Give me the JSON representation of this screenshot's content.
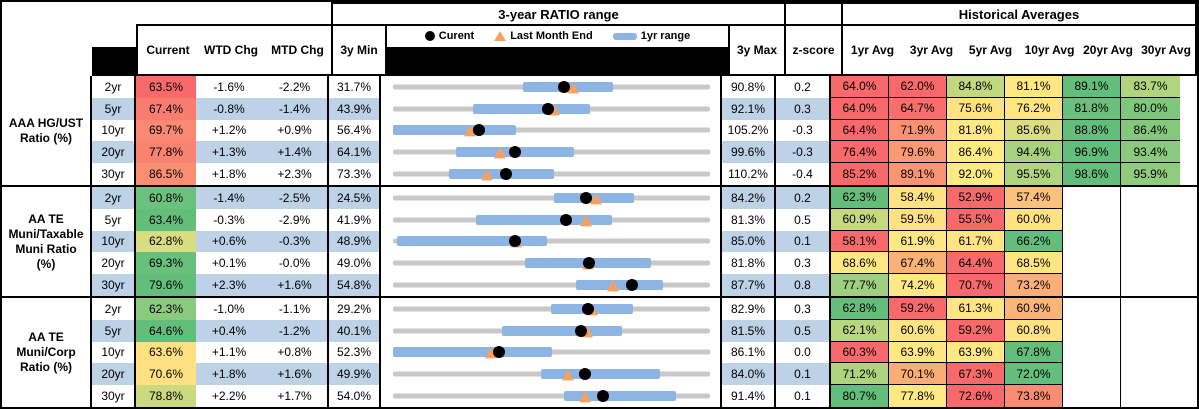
{
  "header": {
    "range_title": "3-year RATIO range",
    "averages_title": "Historical Averages",
    "legend": {
      "current": "Curent",
      "last_month_end": "Last Month End",
      "yr_range": "1yr range"
    },
    "cols": {
      "current": "Current",
      "wtd": "WTD Chg",
      "mtd": "MTD Chg",
      "min": "3y Min",
      "max": "3y Max",
      "z": "z-score"
    },
    "avg_cols": [
      "1yr Avg",
      "3yr Avg",
      "5yr Avg",
      "10yr Avg",
      "20yr Avg",
      "30yr Avg"
    ]
  },
  "colors": {
    "stripe": "#BDD2E6",
    "track": "#C8C8C8",
    "bar": "#8DB4E2",
    "dot": "#000000",
    "triangle": "#F9A05C"
  },
  "groups": [
    {
      "label": "AAA HG/UST Ratio (%)",
      "label_lines": [
        "AAA HG/UST",
        "Ratio (%)"
      ],
      "rows": [
        {
          "term": "2yr",
          "current": "63.5%",
          "current_color": "#F8696B",
          "wtd": "-1.6%",
          "mtd": "-2.2%",
          "min": "31.7%",
          "max": "90.8%",
          "z": "0.2",
          "avgs": [
            "64.0%",
            "62.0%",
            "84.8%",
            "81.1%",
            "89.1%",
            "83.7%"
          ],
          "avg_colors": [
            "#F8696B",
            "#F8696B",
            "#C1D881",
            "#FFE883",
            "#63BE7B",
            "#B2D47F"
          ]
        },
        {
          "term": "5yr",
          "current": "67.4%",
          "current_color": "#F87D70",
          "wtd": "-0.8%",
          "mtd": "-1.4%",
          "min": "43.9%",
          "max": "92.1%",
          "z": "0.3",
          "avgs": [
            "64.0%",
            "64.7%",
            "75.6%",
            "76.2%",
            "81.8%",
            "80.0%"
          ],
          "avg_colors": [
            "#F8696B",
            "#F86E6D",
            "#FFE383",
            "#FFE583",
            "#69C07C",
            "#7FC77D"
          ]
        },
        {
          "term": "10yr",
          "current": "69.7%",
          "current_color": "#F98973",
          "wtd": "+1.2%",
          "mtd": "+0.9%",
          "min": "56.4%",
          "max": "105.2%",
          "z": "-0.3",
          "avgs": [
            "64.4%",
            "71.9%",
            "81.8%",
            "85.6%",
            "88.8%",
            "86.4%"
          ],
          "avg_colors": [
            "#F8696B",
            "#F99172",
            "#FFE983",
            "#DADD82",
            "#63BE7B",
            "#85C87D"
          ]
        },
        {
          "term": "20yr",
          "current": "77.8%",
          "current_color": "#F88370",
          "wtd": "+1.3%",
          "mtd": "+1.4%",
          "min": "64.1%",
          "max": "99.6%",
          "z": "-0.3",
          "avgs": [
            "76.4%",
            "79.6%",
            "86.4%",
            "94.4%",
            "96.9%",
            "93.4%"
          ],
          "avg_colors": [
            "#F8696B",
            "#FA9A74",
            "#FFEB84",
            "#A8D27F",
            "#63BE7B",
            "#8BCA7E"
          ]
        },
        {
          "term": "30yr",
          "current": "86.5%",
          "current_color": "#F98E73",
          "wtd": "+1.8%",
          "mtd": "+2.3%",
          "min": "73.3%",
          "max": "110.2%",
          "z": "-0.4",
          "avgs": [
            "85.2%",
            "89.1%",
            "92.0%",
            "95.5%",
            "98.6%",
            "95.9%"
          ],
          "avg_colors": [
            "#F8696B",
            "#FA9573",
            "#FFEB84",
            "#B1D47F",
            "#63BE7B",
            "#90CB7E"
          ]
        }
      ]
    },
    {
      "label": "AA TE Muni/Taxable Muni Ratio (%)",
      "label_lines": [
        "AA TE",
        "Muni/Taxable",
        "Muni Ratio",
        "(%)"
      ],
      "rows": [
        {
          "term": "2yr",
          "current": "60.8%",
          "current_color": "#6CC17C",
          "wtd": "-1.4%",
          "mtd": "-2.5%",
          "min": "24.5%",
          "max": "84.2%",
          "z": "0.2",
          "avgs": [
            "62.3%",
            "58.4%",
            "52.9%",
            "57.4%",
            "",
            ""
          ],
          "avg_colors": [
            "#63BE7B",
            "#FFE283",
            "#F8696B",
            "#FCC17D",
            "",
            ""
          ]
        },
        {
          "term": "5yr",
          "current": "63.4%",
          "current_color": "#63BE7B",
          "wtd": "-0.3%",
          "mtd": "-2.9%",
          "min": "41.9%",
          "max": "81.3%",
          "z": "0.5",
          "avgs": [
            "60.9%",
            "59.5%",
            "55.5%",
            "60.0%",
            "",
            ""
          ],
          "avg_colors": [
            "#C6D980",
            "#FFE083",
            "#F8696B",
            "#FFE383",
            "",
            ""
          ]
        },
        {
          "term": "10yr",
          "current": "62.8%",
          "current_color": "#DADC82",
          "wtd": "+0.6%",
          "mtd": "-0.3%",
          "min": "48.9%",
          "max": "85.0%",
          "z": "0.1",
          "avgs": [
            "58.1%",
            "61.9%",
            "61.7%",
            "66.2%",
            "",
            ""
          ],
          "avg_colors": [
            "#F8696B",
            "#FFE884",
            "#FFE483",
            "#63BE7B",
            "",
            ""
          ]
        },
        {
          "term": "20yr",
          "current": "69.3%",
          "current_color": "#68C07C",
          "wtd": "+0.1%",
          "mtd": "-0.0%",
          "min": "49.0%",
          "max": "81.8%",
          "z": "0.3",
          "avgs": [
            "68.6%",
            "67.4%",
            "64.4%",
            "68.5%",
            "",
            ""
          ],
          "avg_colors": [
            "#FFE884",
            "#FBB277",
            "#F8696B",
            "#FEE683",
            "",
            ""
          ]
        },
        {
          "term": "30yr",
          "current": "79.6%",
          "current_color": "#63BE7B",
          "wtd": "+2.3%",
          "mtd": "+1.6%",
          "min": "54.8%",
          "max": "87.7%",
          "z": "0.8",
          "avgs": [
            "77.7%",
            "74.2%",
            "70.7%",
            "73.2%",
            "",
            ""
          ],
          "avg_colors": [
            "#9FD07F",
            "#FFE984",
            "#F8696B",
            "#FBAF76",
            "",
            ""
          ]
        }
      ]
    },
    {
      "label": "AA TE Muni/Corp Ratio (%)",
      "label_lines": [
        "AA TE",
        "Muni/Corp",
        "Ratio (%)"
      ],
      "rows": [
        {
          "term": "2yr",
          "current": "62.3%",
          "current_color": "#8ACA7E",
          "wtd": "-1.0%",
          "mtd": "-1.1%",
          "min": "29.2%",
          "max": "82.9%",
          "z": "0.3",
          "avgs": [
            "62.8%",
            "59.2%",
            "61.3%",
            "60.9%",
            "",
            ""
          ],
          "avg_colors": [
            "#63BE7B",
            "#F8696B",
            "#FFE583",
            "#FBB577",
            "",
            ""
          ]
        },
        {
          "term": "5yr",
          "current": "64.6%",
          "current_color": "#63BE7B",
          "wtd": "+0.4%",
          "mtd": "-1.2%",
          "min": "40.1%",
          "max": "81.5%",
          "z": "0.5",
          "avgs": [
            "62.1%",
            "60.6%",
            "59.2%",
            "60.8%",
            "",
            ""
          ],
          "avg_colors": [
            "#B9D680",
            "#FFE483",
            "#F8696B",
            "#FFE283",
            "",
            ""
          ]
        },
        {
          "term": "10yr",
          "current": "63.6%",
          "current_color": "#FFE183",
          "wtd": "+1.1%",
          "mtd": "+0.8%",
          "min": "52.3%",
          "max": "86.1%",
          "z": "0.0",
          "avgs": [
            "60.3%",
            "63.9%",
            "63.9%",
            "67.8%",
            "",
            ""
          ],
          "avg_colors": [
            "#F8696B",
            "#FFE884",
            "#FFE884",
            "#63BE7B",
            "",
            ""
          ]
        },
        {
          "term": "20yr",
          "current": "70.6%",
          "current_color": "#FFE083",
          "wtd": "+1.8%",
          "mtd": "+1.6%",
          "min": "49.9%",
          "max": "84.0%",
          "z": "0.1",
          "avgs": [
            "71.2%",
            "70.1%",
            "67.3%",
            "72.0%",
            "",
            ""
          ],
          "avg_colors": [
            "#AFD47F",
            "#FBAD76",
            "#F8696B",
            "#63BE7B",
            "",
            ""
          ]
        },
        {
          "term": "30yr",
          "current": "78.8%",
          "current_color": "#CCD980",
          "wtd": "+2.2%",
          "mtd": "+1.7%",
          "min": "54.0%",
          "max": "91.4%",
          "z": "0.1",
          "avgs": [
            "80.7%",
            "77.8%",
            "72.6%",
            "73.8%",
            "",
            ""
          ],
          "avg_colors": [
            "#63BE7B",
            "#FFE984",
            "#F8696B",
            "#F98D72",
            "",
            ""
          ]
        }
      ]
    }
  ],
  "chart_data": {
    "type": "range",
    "title": "3-year RATIO range",
    "legend": [
      "Curent",
      "Last Month End",
      "1yr range"
    ],
    "groups": [
      {
        "name": "AAA HG/UST Ratio (%)",
        "rows": [
          {
            "term": "2yr",
            "min_3y": 31.7,
            "max_3y": 90.8,
            "yr1_low": 55.9,
            "yr1_high": 72.7,
            "current": 63.5,
            "last_month_end": 65.2
          },
          {
            "term": "5yr",
            "min_3y": 43.9,
            "max_3y": 92.1,
            "yr1_low": 56.1,
            "yr1_high": 73.9,
            "current": 67.4,
            "last_month_end": 68.4
          },
          {
            "term": "10yr",
            "min_3y": 56.4,
            "max_3y": 105.2,
            "yr1_low": 56.4,
            "yr1_high": 75.3,
            "current": 69.7,
            "last_month_end": 68.3
          },
          {
            "term": "20yr",
            "min_3y": 64.1,
            "max_3y": 99.6,
            "yr1_low": 71.1,
            "yr1_high": 84.4,
            "current": 77.8,
            "last_month_end": 76.1
          },
          {
            "term": "30yr",
            "min_3y": 73.3,
            "max_3y": 110.2,
            "yr1_low": 79.8,
            "yr1_high": 92.1,
            "current": 86.5,
            "last_month_end": 84.2
          }
        ]
      },
      {
        "name": "AA TE Muni/Taxable Muni Ratio (%)",
        "rows": [
          {
            "term": "2yr",
            "min_3y": 24.5,
            "max_3y": 84.2,
            "yr1_low": 54.9,
            "yr1_high": 69.8,
            "current": 60.8,
            "last_month_end": 62.8
          },
          {
            "term": "5yr",
            "min_3y": 41.9,
            "max_3y": 81.3,
            "yr1_low": 52.2,
            "yr1_high": 69.1,
            "current": 63.4,
            "last_month_end": 65.9
          },
          {
            "term": "10yr",
            "min_3y": 48.9,
            "max_3y": 85.0,
            "yr1_low": 49.4,
            "yr1_high": 66.4,
            "current": 62.8,
            "last_month_end": 62.9
          },
          {
            "term": "20yr",
            "min_3y": 49.0,
            "max_3y": 81.8,
            "yr1_low": 62.7,
            "yr1_high": 75.7,
            "current": 69.3,
            "last_month_end": 69.2
          },
          {
            "term": "30yr",
            "min_3y": 54.8,
            "max_3y": 87.7,
            "yr1_low": 73.8,
            "yr1_high": 82.8,
            "current": 79.6,
            "last_month_end": 77.6
          }
        ]
      },
      {
        "name": "AA TE Muni/Corp Ratio (%)",
        "rows": [
          {
            "term": "2yr",
            "min_3y": 29.2,
            "max_3y": 82.9,
            "yr1_low": 56.0,
            "yr1_high": 69.9,
            "current": 62.3,
            "last_month_end": 62.9
          },
          {
            "term": "5yr",
            "min_3y": 40.1,
            "max_3y": 81.5,
            "yr1_low": 54.4,
            "yr1_high": 70.0,
            "current": 64.6,
            "last_month_end": 65.5
          },
          {
            "term": "10yr",
            "min_3y": 52.3,
            "max_3y": 86.1,
            "yr1_low": 52.3,
            "yr1_high": 69.3,
            "current": 63.6,
            "last_month_end": 62.7
          },
          {
            "term": "20yr",
            "min_3y": 49.9,
            "max_3y": 84.0,
            "yr1_low": 65.8,
            "yr1_high": 78.6,
            "current": 70.6,
            "last_month_end": 68.7
          },
          {
            "term": "30yr",
            "min_3y": 54.0,
            "max_3y": 91.4,
            "yr1_low": 74.2,
            "yr1_high": 87.4,
            "current": 78.8,
            "last_month_end": 76.6
          }
        ]
      }
    ]
  }
}
